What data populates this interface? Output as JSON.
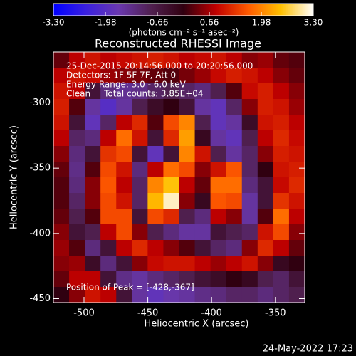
{
  "chart_data": {
    "type": "heatmap",
    "title": "Reconstructed RHESSI Image",
    "x_label": "Heliocentric X (arcsec)",
    "y_label": "Heliocentric Y (arcsec)",
    "annotations": [
      "25-Dec-2015 20:14:56.000 to 20:20:56.000",
      "Detectors: 1F 5F 7F, Att 0",
      "Energy Range: 3.0 - 6.0 keV",
      "Clean     Total counts: 3.85E+04"
    ],
    "peak_label": "Position of Peak = [-428,-367]",
    "timestamp": "24-May-2022 17:23",
    "xlim": [
      -524,
      -327
    ],
    "ylim": [
      -453,
      -261
    ],
    "xticks": [
      -500,
      -450,
      -400,
      -350
    ],
    "yticks": [
      -300,
      -350,
      -400,
      -450
    ],
    "colormap": [
      "#0000ff",
      "#3a20e0",
      "#6a38b0",
      "#502050",
      "#300010",
      "#c00000",
      "#ff5a00",
      "#ffc000",
      "#ffffff"
    ],
    "colorbar": {
      "clim": [
        -3.3,
        3.3
      ],
      "ticks": [
        {
          "value": -3.3,
          "label": "-3.30"
        },
        {
          "value": -1.98,
          "label": "-1.98"
        },
        {
          "value": -0.66,
          "label": "-0.66"
        },
        {
          "value": 0.66,
          "label": "0.66"
        },
        {
          "value": 1.98,
          "label": "1.98"
        },
        {
          "value": 3.3,
          "label": "3.30"
        }
      ],
      "label": "(photons cm⁻² s⁻¹ asec⁻²)"
    },
    "z": [
      [
        0.3,
        0.8,
        1.0,
        0.8,
        0.9,
        1.0,
        1.1,
        1.0,
        0.8,
        0.9,
        1.0,
        0.8,
        0.5,
        0.6,
        0.3,
        0.2
      ],
      [
        0.8,
        1.0,
        0.9,
        0.6,
        0.5,
        0.4,
        0.3,
        0.2,
        0.4,
        0.6,
        0.9,
        1.1,
        1.0,
        0.8,
        0.5,
        0.3
      ],
      [
        1.0,
        0.8,
        -0.5,
        -1.2,
        -1.4,
        -1.3,
        -1.0,
        -0.8,
        -1.0,
        -1.2,
        -0.8,
        0.2,
        0.9,
        1.1,
        0.8,
        0.5
      ],
      [
        1.1,
        0.2,
        -1.5,
        -2.0,
        -1.5,
        -0.8,
        -0.3,
        0.0,
        -0.5,
        -1.5,
        -1.8,
        -1.0,
        0.5,
        1.1,
        1.0,
        0.6
      ],
      [
        1.0,
        -0.5,
        -1.8,
        -1.0,
        0.8,
        1.2,
        0.2,
        1.5,
        2.0,
        -0.8,
        -1.8,
        -1.5,
        -0.3,
        1.0,
        1.1,
        0.8
      ],
      [
        0.8,
        -1.0,
        -1.2,
        0.8,
        1.8,
        1.0,
        -0.5,
        1.2,
        2.2,
        -0.2,
        -1.5,
        -1.8,
        -0.8,
        0.8,
        1.2,
        0.9
      ],
      [
        0.5,
        -1.2,
        -0.5,
        1.3,
        1.5,
        -0.5,
        -1.8,
        -0.5,
        2.0,
        1.0,
        -0.8,
        -1.5,
        -1.0,
        0.5,
        1.1,
        1.0
      ],
      [
        0.3,
        -1.3,
        0.2,
        1.5,
        1.0,
        -1.2,
        0.8,
        1.8,
        1.5,
        0.5,
        1.0,
        1.6,
        -1.0,
        0.0,
        1.0,
        1.1
      ],
      [
        0.2,
        -1.2,
        0.5,
        1.6,
        0.8,
        -1.0,
        2.0,
        2.5,
        0.8,
        0.3,
        1.8,
        1.8,
        -1.2,
        -0.5,
        0.9,
        1.2
      ],
      [
        0.2,
        -1.0,
        0.5,
        1.5,
        1.0,
        -1.0,
        2.4,
        3.1,
        0.5,
        -0.2,
        1.6,
        1.5,
        -1.5,
        -0.5,
        1.3,
        1.0
      ],
      [
        0.3,
        -0.8,
        0.2,
        1.5,
        1.5,
        -0.5,
        1.5,
        1.2,
        -0.8,
        -1.2,
        0.8,
        0.5,
        -1.5,
        0.2,
        1.8,
        0.8
      ],
      [
        0.5,
        -0.5,
        -0.8,
        0.8,
        1.5,
        0.5,
        -0.8,
        -1.2,
        -1.5,
        -1.5,
        -0.5,
        -0.8,
        -1.0,
        1.0,
        1.5,
        0.5
      ],
      [
        0.6,
        0.2,
        -1.2,
        -0.5,
        0.8,
        1.2,
        0.8,
        0.5,
        0.2,
        -0.5,
        -1.0,
        -1.2,
        0.5,
        1.2,
        0.8,
        0.3
      ],
      [
        0.5,
        0.6,
        -0.3,
        -1.2,
        -0.5,
        0.5,
        0.9,
        1.0,
        1.0,
        0.8,
        0.6,
        0.8,
        1.0,
        0.5,
        -0.2,
        0.0
      ],
      [
        0.3,
        0.8,
        0.8,
        -0.5,
        -1.3,
        -1.5,
        -1.2,
        -1.0,
        -0.8,
        -0.5,
        -0.3,
        0.0,
        -0.2,
        -0.8,
        -1.0,
        -0.5
      ],
      [
        0.0,
        0.5,
        1.0,
        0.8,
        -0.5,
        -1.5,
        -1.8,
        -1.6,
        -1.5,
        -1.3,
        -1.2,
        -1.0,
        -1.0,
        -1.2,
        -1.0,
        -0.8
      ]
    ]
  }
}
